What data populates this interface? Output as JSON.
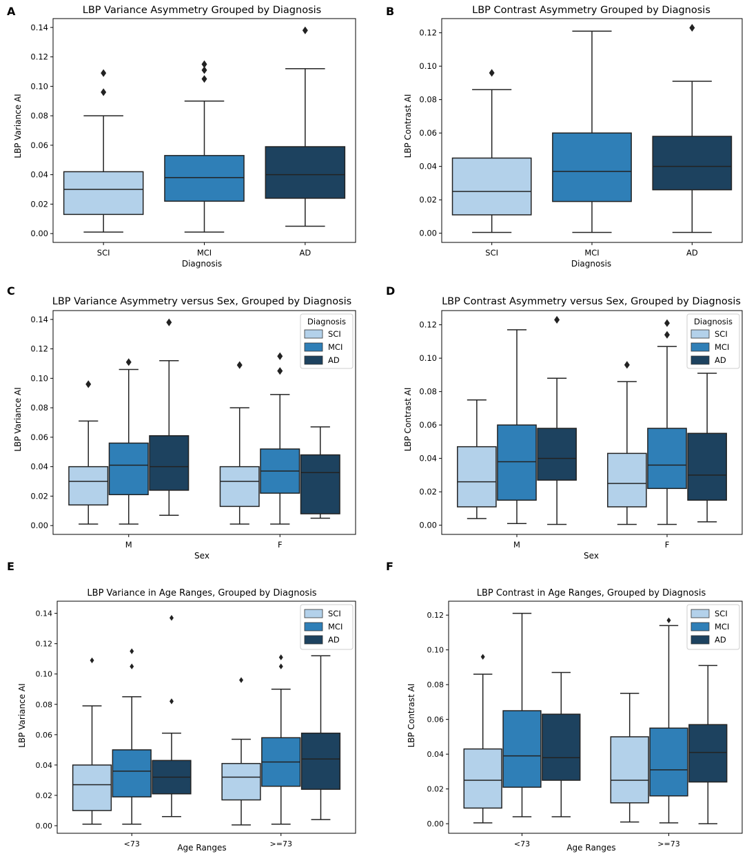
{
  "palette": {
    "SCI": "#b3d1ea",
    "MCI": "#2f7fb7",
    "AD": "#1d425f",
    "line": "#222222"
  },
  "chart_data": [
    {
      "panel": "A",
      "type": "box",
      "title": "LBP Variance Asymmetry Grouped by Diagnosis",
      "xlabel": "Diagnosis",
      "ylabel": "LBP Variance AI",
      "ylim": [
        -0.006,
        0.146
      ],
      "yticks": [
        0.0,
        0.02,
        0.04,
        0.06,
        0.08,
        0.1,
        0.12,
        0.14
      ],
      "ytick_labels": [
        "0.00",
        "0.02",
        "0.04",
        "0.06",
        "0.08",
        "0.10",
        "0.12",
        "0.14"
      ],
      "categories": [
        "SCI",
        "MCI",
        "AD"
      ],
      "legend": null,
      "boxes": [
        {
          "cat": 0,
          "series": "SCI",
          "wlo": 0.001,
          "q1": 0.013,
          "med": 0.03,
          "q3": 0.042,
          "whi": 0.08,
          "out": [
            0.096,
            0.109
          ]
        },
        {
          "cat": 1,
          "series": "MCI",
          "wlo": 0.001,
          "q1": 0.022,
          "med": 0.038,
          "q3": 0.053,
          "whi": 0.09,
          "out": [
            0.105,
            0.111,
            0.115
          ]
        },
        {
          "cat": 2,
          "series": "AD",
          "wlo": 0.005,
          "q1": 0.024,
          "med": 0.04,
          "q3": 0.059,
          "whi": 0.112,
          "out": [
            0.138
          ]
        }
      ]
    },
    {
      "panel": "B",
      "type": "box",
      "title": "LBP Contrast Asymmetry Grouped by Diagnosis",
      "xlabel": "Diagnosis",
      "ylabel": "LBP Contrast AI",
      "ylim": [
        -0.0055,
        0.1285
      ],
      "yticks": [
        0.0,
        0.02,
        0.04,
        0.06,
        0.08,
        0.1,
        0.12
      ],
      "ytick_labels": [
        "0.00",
        "0.02",
        "0.04",
        "0.06",
        "0.08",
        "0.10",
        "0.12"
      ],
      "categories": [
        "SCI",
        "MCI",
        "AD"
      ],
      "legend": null,
      "boxes": [
        {
          "cat": 0,
          "series": "SCI",
          "wlo": 0.0005,
          "q1": 0.011,
          "med": 0.025,
          "q3": 0.045,
          "whi": 0.086,
          "out": [
            0.096
          ]
        },
        {
          "cat": 1,
          "series": "MCI",
          "wlo": 0.0005,
          "q1": 0.019,
          "med": 0.037,
          "q3": 0.06,
          "whi": 0.121,
          "out": []
        },
        {
          "cat": 2,
          "series": "AD",
          "wlo": 0.0005,
          "q1": 0.026,
          "med": 0.04,
          "q3": 0.058,
          "whi": 0.091,
          "out": [
            0.123
          ]
        }
      ]
    },
    {
      "panel": "C",
      "type": "box",
      "title": "LBP Variance Asymmetry versus Sex, Grouped by Diagnosis",
      "xlabel": "Sex",
      "ylabel": "LBP Variance AI",
      "ylim": [
        -0.006,
        0.146
      ],
      "yticks": [
        0.0,
        0.02,
        0.04,
        0.06,
        0.08,
        0.1,
        0.12,
        0.14
      ],
      "ytick_labels": [
        "0.00",
        "0.02",
        "0.04",
        "0.06",
        "0.08",
        "0.10",
        "0.12",
        "0.14"
      ],
      "categories": [
        "M",
        "F"
      ],
      "legend": {
        "title": "Diagnosis",
        "entries": [
          "SCI",
          "MCI",
          "AD"
        ],
        "position": "top-right"
      },
      "boxes": [
        {
          "cat": 0,
          "series": "SCI",
          "wlo": 0.001,
          "q1": 0.014,
          "med": 0.03,
          "q3": 0.04,
          "whi": 0.071,
          "out": [
            0.096
          ]
        },
        {
          "cat": 0,
          "series": "MCI",
          "wlo": 0.001,
          "q1": 0.021,
          "med": 0.041,
          "q3": 0.056,
          "whi": 0.106,
          "out": [
            0.111
          ]
        },
        {
          "cat": 0,
          "series": "AD",
          "wlo": 0.007,
          "q1": 0.024,
          "med": 0.04,
          "q3": 0.061,
          "whi": 0.112,
          "out": [
            0.138
          ]
        },
        {
          "cat": 1,
          "series": "SCI",
          "wlo": 0.001,
          "q1": 0.013,
          "med": 0.03,
          "q3": 0.04,
          "whi": 0.08,
          "out": [
            0.109
          ]
        },
        {
          "cat": 1,
          "series": "MCI",
          "wlo": 0.001,
          "q1": 0.022,
          "med": 0.037,
          "q3": 0.052,
          "whi": 0.089,
          "out": [
            0.105,
            0.115
          ]
        },
        {
          "cat": 1,
          "series": "AD",
          "wlo": 0.005,
          "q1": 0.008,
          "med": 0.036,
          "q3": 0.048,
          "whi": 0.067,
          "out": []
        }
      ]
    },
    {
      "panel": "D",
      "type": "box",
      "title": "LBP Contrast Asymmetry versus Sex, Grouped by Diagnosis",
      "xlabel": "Sex",
      "ylabel": "LBP Contrast AI",
      "ylim": [
        -0.0055,
        0.1285
      ],
      "yticks": [
        0.0,
        0.02,
        0.04,
        0.06,
        0.08,
        0.1,
        0.12
      ],
      "ytick_labels": [
        "0.00",
        "0.02",
        "0.04",
        "0.06",
        "0.08",
        "0.10",
        "0.12"
      ],
      "categories": [
        "M",
        "F"
      ],
      "legend": {
        "title": "Diagnosis",
        "entries": [
          "SCI",
          "MCI",
          "AD"
        ],
        "position": "top-right"
      },
      "boxes": [
        {
          "cat": 0,
          "series": "SCI",
          "wlo": 0.004,
          "q1": 0.011,
          "med": 0.026,
          "q3": 0.047,
          "whi": 0.075,
          "out": []
        },
        {
          "cat": 0,
          "series": "MCI",
          "wlo": 0.001,
          "q1": 0.015,
          "med": 0.038,
          "q3": 0.06,
          "whi": 0.117,
          "out": []
        },
        {
          "cat": 0,
          "series": "AD",
          "wlo": 0.0005,
          "q1": 0.027,
          "med": 0.04,
          "q3": 0.058,
          "whi": 0.088,
          "out": [
            0.123
          ]
        },
        {
          "cat": 1,
          "series": "SCI",
          "wlo": 0.0005,
          "q1": 0.011,
          "med": 0.025,
          "q3": 0.043,
          "whi": 0.086,
          "out": [
            0.096
          ]
        },
        {
          "cat": 1,
          "series": "MCI",
          "wlo": 0.0005,
          "q1": 0.022,
          "med": 0.036,
          "q3": 0.058,
          "whi": 0.107,
          "out": [
            0.114,
            0.121
          ]
        },
        {
          "cat": 1,
          "series": "AD",
          "wlo": 0.002,
          "q1": 0.015,
          "med": 0.03,
          "q3": 0.055,
          "whi": 0.091,
          "out": []
        }
      ]
    },
    {
      "panel": "E",
      "type": "box",
      "title": "LBP Variance in Age Ranges, Grouped by Diagnosis",
      "xlabel": "Age Ranges",
      "ylabel": "LBP Variance AI",
      "ylim": [
        -0.005,
        0.148
      ],
      "yticks": [
        0.0,
        0.02,
        0.04,
        0.06,
        0.08,
        0.1,
        0.12,
        0.14
      ],
      "ytick_labels": [
        "0.00",
        "0.02",
        "0.04",
        "0.06",
        "0.08",
        "0.10",
        "0.12",
        "0.14"
      ],
      "categories": [
        "<73",
        ">=73"
      ],
      "legend": {
        "title": null,
        "entries": [
          "SCI",
          "MCI",
          "AD"
        ],
        "position": "top-right"
      },
      "boxes": [
        {
          "cat": 0,
          "series": "SCI",
          "wlo": 0.001,
          "q1": 0.01,
          "med": 0.027,
          "q3": 0.04,
          "whi": 0.079,
          "out": [
            0.109
          ]
        },
        {
          "cat": 0,
          "series": "MCI",
          "wlo": 0.001,
          "q1": 0.019,
          "med": 0.036,
          "q3": 0.05,
          "whi": 0.085,
          "out": [
            0.105,
            0.115
          ]
        },
        {
          "cat": 0,
          "series": "AD",
          "wlo": 0.006,
          "q1": 0.021,
          "med": 0.032,
          "q3": 0.043,
          "whi": 0.061,
          "out": [
            0.082,
            0.137
          ]
        },
        {
          "cat": 1,
          "series": "SCI",
          "wlo": 0.0005,
          "q1": 0.017,
          "med": 0.032,
          "q3": 0.041,
          "whi": 0.057,
          "out": [
            0.096
          ]
        },
        {
          "cat": 1,
          "series": "MCI",
          "wlo": 0.001,
          "q1": 0.026,
          "med": 0.042,
          "q3": 0.058,
          "whi": 0.09,
          "out": [
            0.105,
            0.111
          ]
        },
        {
          "cat": 1,
          "series": "AD",
          "wlo": 0.004,
          "q1": 0.024,
          "med": 0.044,
          "q3": 0.061,
          "whi": 0.112,
          "out": []
        }
      ]
    },
    {
      "panel": "F",
      "type": "box",
      "title": "LBP Contrast in Age Ranges, Grouped by Diagnosis",
      "xlabel": "Age Ranges",
      "ylabel": "LBP Contrast AI",
      "ylim": [
        -0.0055,
        0.128
      ],
      "yticks": [
        0.0,
        0.02,
        0.04,
        0.06,
        0.08,
        0.1,
        0.12
      ],
      "ytick_labels": [
        "0.00",
        "0.02",
        "0.04",
        "0.06",
        "0.08",
        "0.10",
        "0.12"
      ],
      "categories": [
        "<73",
        ">=73"
      ],
      "legend": {
        "title": null,
        "entries": [
          "SCI",
          "MCI",
          "AD"
        ],
        "position": "top-right"
      },
      "boxes": [
        {
          "cat": 0,
          "series": "SCI",
          "wlo": 0.0005,
          "q1": 0.009,
          "med": 0.025,
          "q3": 0.043,
          "whi": 0.086,
          "out": [
            0.096
          ]
        },
        {
          "cat": 0,
          "series": "MCI",
          "wlo": 0.004,
          "q1": 0.021,
          "med": 0.039,
          "q3": 0.065,
          "whi": 0.121,
          "out": []
        },
        {
          "cat": 0,
          "series": "AD",
          "wlo": 0.004,
          "q1": 0.025,
          "med": 0.038,
          "q3": 0.063,
          "whi": 0.087,
          "out": []
        },
        {
          "cat": 1,
          "series": "SCI",
          "wlo": 0.001,
          "q1": 0.012,
          "med": 0.025,
          "q3": 0.05,
          "whi": 0.075,
          "out": []
        },
        {
          "cat": 1,
          "series": "MCI",
          "wlo": 0.0005,
          "q1": 0.016,
          "med": 0.031,
          "q3": 0.055,
          "whi": 0.114,
          "out": [
            0.117
          ]
        },
        {
          "cat": 1,
          "series": "AD",
          "wlo": 0.0,
          "q1": 0.024,
          "med": 0.041,
          "q3": 0.057,
          "whi": 0.091,
          "out": []
        }
      ]
    }
  ]
}
